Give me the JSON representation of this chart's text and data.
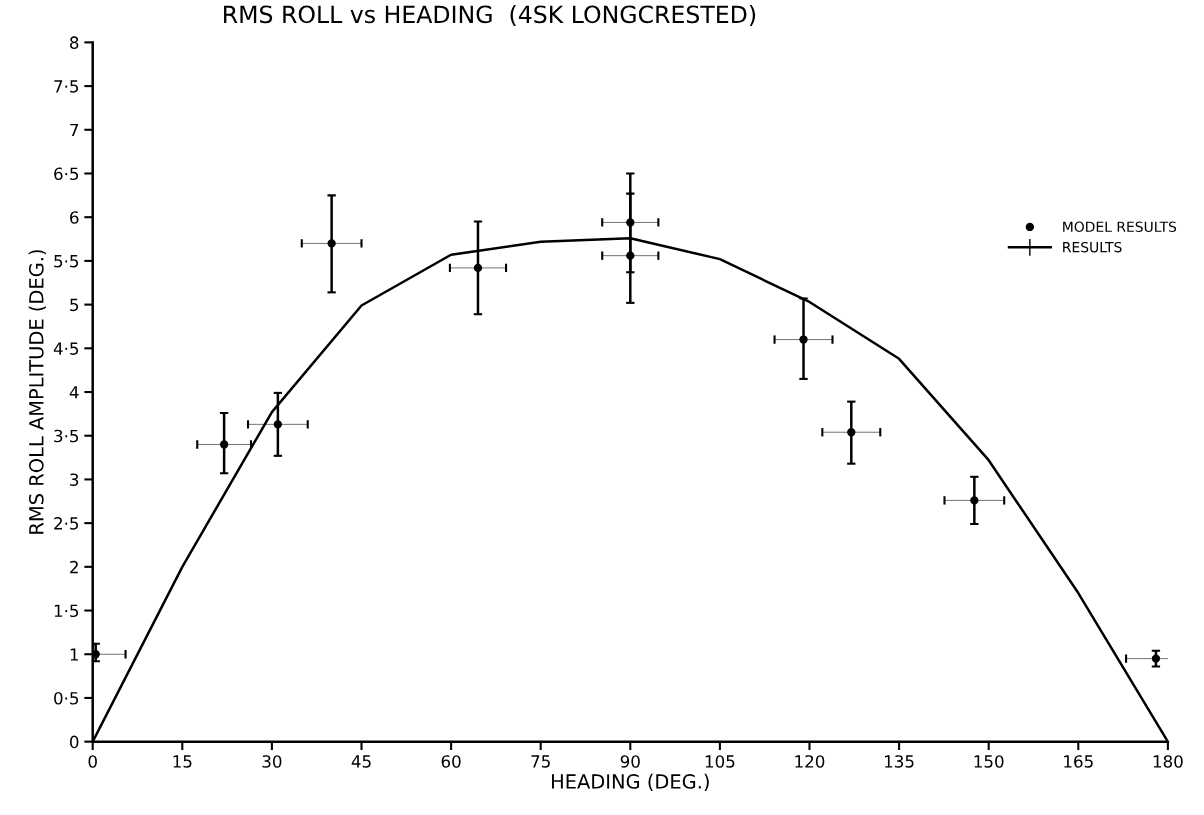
{
  "chart_data": {
    "type": "scatter",
    "title": "RMS ROLL vs HEADING  (4SK LONGCRESTED)",
    "xlabel": "HEADING (DEG.)",
    "ylabel": "RMS ROLL AMPLITUDE (DEG.)",
    "xlim": [
      0,
      180
    ],
    "ylim": [
      0,
      8
    ],
    "xticks": [
      0,
      15,
      30,
      45,
      60,
      75,
      90,
      105,
      120,
      135,
      150,
      165,
      180
    ],
    "yticks": [
      0,
      {
        "value": 0.5,
        "label": "0·5"
      },
      1,
      {
        "value": 1.5,
        "label": "1·5"
      },
      2,
      {
        "value": 2.5,
        "label": "2·5"
      },
      3,
      {
        "value": 3.5,
        "label": "3·5"
      },
      4,
      {
        "value": 4.5,
        "label": "4·5"
      },
      5,
      {
        "value": 5.5,
        "label": "5·5"
      },
      6,
      {
        "value": 6.5,
        "label": "6·5"
      },
      7,
      {
        "value": 7.5,
        "label": "7·5"
      },
      8
    ],
    "grid": false,
    "legend": "right",
    "series": [
      {
        "name": "MODEL RESULTS",
        "marker": "circle",
        "color": "#000000",
        "x": [
          0.5,
          22,
          31,
          40,
          64.5,
          90,
          90,
          119,
          127,
          147.6,
          178
        ],
        "values": [
          1.0,
          3.4,
          3.63,
          5.7,
          5.42,
          5.94,
          5.56,
          4.6,
          3.54,
          2.76,
          0.95
        ],
        "errors": [
          [
            0.92,
            1.12
          ],
          [
            3.07,
            3.76
          ],
          [
            3.27,
            3.99
          ],
          [
            5.14,
            6.25
          ],
          [
            4.89,
            5.95
          ],
          [
            5.37,
            6.5
          ],
          [
            5.02,
            6.27
          ],
          [
            4.15,
            5.07
          ],
          [
            3.18,
            3.89
          ],
          [
            2.49,
            3.03
          ],
          [
            0.86,
            1.04
          ]
        ],
        "xerrors": [
          5,
          4.5,
          5,
          5,
          4.7,
          4.7,
          4.7,
          4.85,
          4.85,
          5,
          5
        ]
      },
      {
        "name": "RESULTS",
        "type": "line",
        "marker": "none",
        "color": "#000000",
        "x": [
          0,
          15,
          30,
          45,
          60,
          75,
          90,
          105,
          120,
          135,
          150,
          165,
          180
        ],
        "values": [
          0,
          2.0,
          3.77,
          4.99,
          5.57,
          5.72,
          5.76,
          5.52,
          5.03,
          4.38,
          3.22,
          1.7,
          0
        ]
      }
    ]
  }
}
